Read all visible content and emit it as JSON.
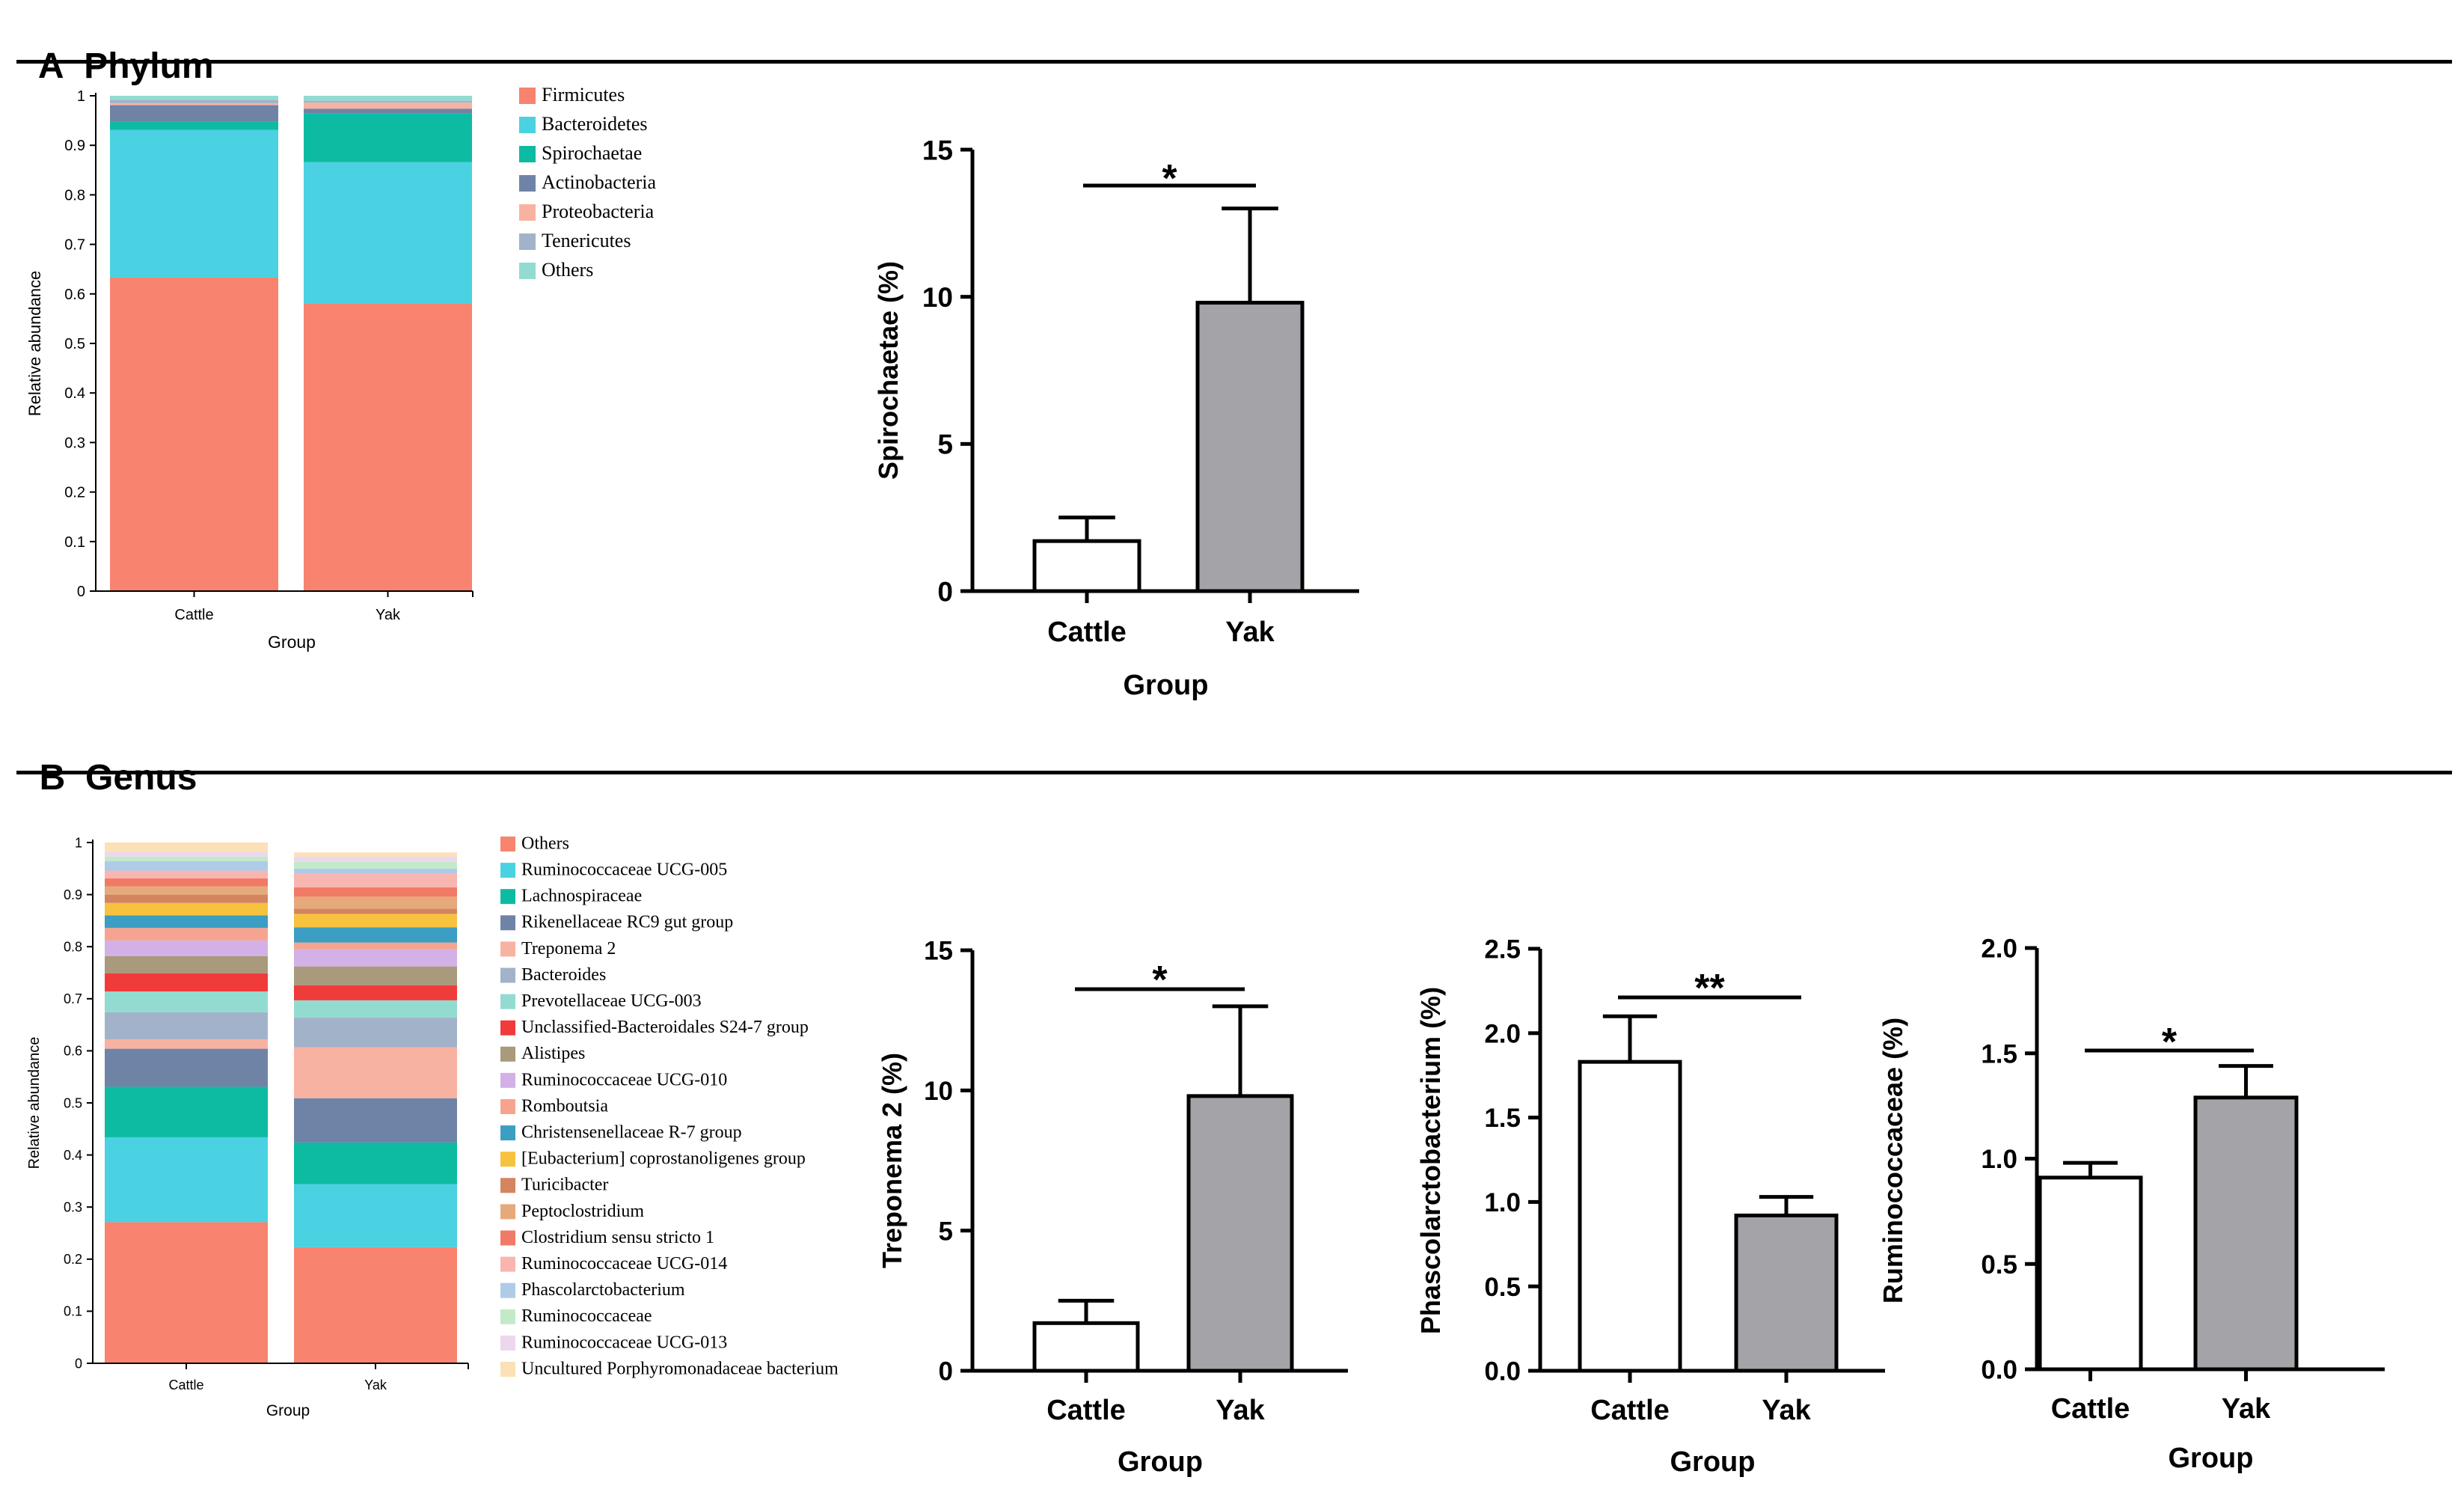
{
  "sections": {
    "a": {
      "letter": "A",
      "title": "Phylum"
    },
    "b": {
      "letter": "B",
      "title": "Genus"
    }
  },
  "chart_data": [
    {
      "id": "phylum-stacked",
      "type": "bar",
      "stacked": true,
      "xlabel": "Group",
      "ylabel": "Relative abundance",
      "categories": [
        "Cattle",
        "Yak"
      ],
      "ylim": [
        0,
        1
      ],
      "yticks": [
        "0",
        "0.1",
        "0.2",
        "0.3",
        "0.4",
        "0.5",
        "0.6",
        "0.7",
        "0.8",
        "0.9",
        "1"
      ],
      "legend_position": "right",
      "series": [
        {
          "name": "Firmicutes",
          "color": "#f8836f",
          "values": [
            0.633,
            0.581
          ]
        },
        {
          "name": "Bacteroidetes",
          "color": "#4ad1e2",
          "values": [
            0.298,
            0.285
          ]
        },
        {
          "name": "Spirochaetae",
          "color": "#0dbba2",
          "values": [
            0.017,
            0.098
          ]
        },
        {
          "name": "Actinobacteria",
          "color": "#6f83a6",
          "values": [
            0.033,
            0.01
          ]
        },
        {
          "name": "Proteobacteria",
          "color": "#f8b2a2",
          "values": [
            0.004,
            0.012
          ]
        },
        {
          "name": "Tenericutes",
          "color": "#a2b2c9",
          "values": [
            0.007,
            0.004
          ]
        },
        {
          "name": "Others",
          "color": "#93dbd0",
          "values": [
            0.008,
            0.01
          ]
        }
      ]
    },
    {
      "id": "spirochaetae-bar",
      "type": "bar",
      "xlabel": "Group",
      "ylabel": "Spirochaetae (%)",
      "categories": [
        "Cattle",
        "Yak"
      ],
      "values": [
        1.7,
        9.8
      ],
      "errors": [
        0.8,
        3.2
      ],
      "bar_colors": [
        "#ffffff",
        "#a4a3a8"
      ],
      "ylim": [
        0,
        15
      ],
      "yticks": [
        "0",
        "5",
        "10",
        "15"
      ],
      "significance": "*"
    },
    {
      "id": "genus-stacked",
      "type": "bar",
      "stacked": true,
      "xlabel": "Group",
      "ylabel": "Relative abundance",
      "categories": [
        "Cattle",
        "Yak"
      ],
      "ylim": [
        0,
        1
      ],
      "yticks": [
        "0",
        "0.1",
        "0.2",
        "0.3",
        "0.4",
        "0.5",
        "0.6",
        "0.7",
        "0.8",
        "0.9",
        "1"
      ],
      "legend_position": "right",
      "series": [
        {
          "name": "Others",
          "color": "#f8836f",
          "values": [
            0.271,
            0.223
          ]
        },
        {
          "name": "Ruminococcaceae UCG-005",
          "color": "#4ad1e2",
          "values": [
            0.163,
            0.121
          ]
        },
        {
          "name": "Lachnospiraceae",
          "color": "#0dbba2",
          "values": [
            0.097,
            0.08
          ]
        },
        {
          "name": "Rikenellaceae RC9 gut group",
          "color": "#6f83a6",
          "values": [
            0.073,
            0.085
          ]
        },
        {
          "name": "Treponema 2",
          "color": "#f8b2a2",
          "values": [
            0.018,
            0.098
          ]
        },
        {
          "name": "Bacteroides",
          "color": "#a2b2c9",
          "values": [
            0.052,
            0.057
          ]
        },
        {
          "name": "Prevotellaceae UCG-003",
          "color": "#93dbd0",
          "values": [
            0.04,
            0.033
          ]
        },
        {
          "name": "Unclassified-Bacteroidales S24-7 group",
          "color": "#f03b3b",
          "values": [
            0.035,
            0.029
          ]
        },
        {
          "name": "Alistipes",
          "color": "#a89a7b",
          "values": [
            0.033,
            0.036
          ]
        },
        {
          "name": "Ruminococcaceae UCG-010",
          "color": "#d3b0e6",
          "values": [
            0.03,
            0.033
          ]
        },
        {
          "name": "Romboutsia",
          "color": "#f6a48f",
          "values": [
            0.024,
            0.013
          ]
        },
        {
          "name": "Christensenellaceae R-7 group",
          "color": "#3c9ec2",
          "values": [
            0.024,
            0.029
          ]
        },
        {
          "name": "[Eubacterium] coprostanoligenes group",
          "color": "#f7c23e",
          "values": [
            0.024,
            0.026
          ]
        },
        {
          "name": "Turicibacter",
          "color": "#d4845f",
          "values": [
            0.016,
            0.01
          ]
        },
        {
          "name": "Peptoclostridium",
          "color": "#e6a97b",
          "values": [
            0.016,
            0.023
          ]
        },
        {
          "name": "Clostridium sensu stricto 1",
          "color": "#f07a66",
          "values": [
            0.015,
            0.018
          ]
        },
        {
          "name": "Ruminococcaceae UCG-014",
          "color": "#f9b5b0",
          "values": [
            0.015,
            0.026
          ]
        },
        {
          "name": "Phascolarctobacterium",
          "color": "#aecbe8",
          "values": [
            0.018,
            0.01
          ]
        },
        {
          "name": "Ruminococcaceae",
          "color": "#c3eac8",
          "values": [
            0.009,
            0.013
          ]
        },
        {
          "name": "Ruminococcaceae UCG-013",
          "color": "#ecd7ee",
          "values": [
            0.009,
            0.01
          ]
        },
        {
          "name": "Uncultured Porphyromonadaceae bacterium",
          "color": "#fbe1b5",
          "values": [
            0.018,
            0.008
          ]
        }
      ]
    },
    {
      "id": "treponema-bar",
      "type": "bar",
      "xlabel": "Group",
      "ylabel": "Treponema 2 (%)",
      "categories": [
        "Cattle",
        "Yak"
      ],
      "values": [
        1.7,
        9.8
      ],
      "errors": [
        0.8,
        3.2
      ],
      "bar_colors": [
        "#ffffff",
        "#a4a3a8"
      ],
      "ylim": [
        0,
        15
      ],
      "yticks": [
        "0",
        "5",
        "10",
        "15"
      ],
      "significance": "*"
    },
    {
      "id": "phascolarcto-bar",
      "type": "bar",
      "xlabel": "Group",
      "ylabel": "Phascolarctobacterium (%)",
      "categories": [
        "Cattle",
        "Yak"
      ],
      "values": [
        1.83,
        0.92
      ],
      "errors": [
        0.27,
        0.11
      ],
      "bar_colors": [
        "#ffffff",
        "#a4a3a8"
      ],
      "ylim": [
        0,
        2.5
      ],
      "yticks": [
        "0.0",
        "0.5",
        "1.0",
        "1.5",
        "2.0",
        "2.5"
      ],
      "significance": "**"
    },
    {
      "id": "ruminococcaceae-bar",
      "type": "bar",
      "xlabel": "Group",
      "ylabel": "Ruminococcaceae (%)",
      "categories": [
        "Cattle",
        "Yak"
      ],
      "values": [
        0.91,
        1.29
      ],
      "errors": [
        0.07,
        0.15
      ],
      "bar_colors": [
        "#ffffff",
        "#a4a3a8"
      ],
      "ylim": [
        0,
        2
      ],
      "yticks": [
        "0.0",
        "0.5",
        "1.0",
        "1.5",
        "2.0"
      ],
      "significance": "*"
    }
  ]
}
